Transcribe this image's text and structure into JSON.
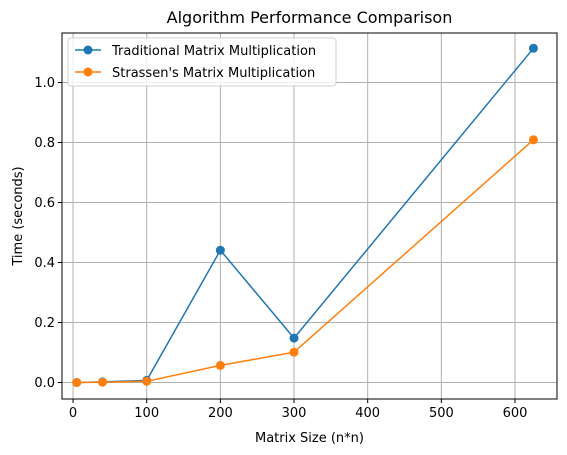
{
  "chart_data": {
    "type": "line",
    "title": "Algorithm Performance Comparison",
    "xlabel": "Matrix Size (n*n)",
    "ylabel": "Time (seconds)",
    "xlim": [
      -15,
      657
    ],
    "ylim": [
      -0.055,
      1.165
    ],
    "xticks": [
      0,
      100,
      200,
      300,
      400,
      500,
      600
    ],
    "yticks": [
      0.0,
      0.2,
      0.4,
      0.6,
      0.8,
      1.0
    ],
    "ytick_labels": [
      "0.0",
      "0.2",
      "0.4",
      "0.6",
      "0.8",
      "1.0"
    ],
    "grid": true,
    "legend_position": "top-left",
    "series": [
      {
        "name": "Traditional Matrix Multiplication",
        "color": "#1f77b4",
        "marker": "circle",
        "x": [
          5,
          40,
          100,
          200,
          300,
          625
        ],
        "y": [
          0.0,
          0.002,
          0.007,
          0.441,
          0.148,
          1.114
        ]
      },
      {
        "name": "Strassen's Matrix Multiplication",
        "color": "#ff7f0e",
        "marker": "circle",
        "x": [
          5,
          40,
          100,
          200,
          300,
          625
        ],
        "y": [
          0.0,
          0.001,
          0.004,
          0.057,
          0.101,
          0.809
        ]
      }
    ]
  }
}
